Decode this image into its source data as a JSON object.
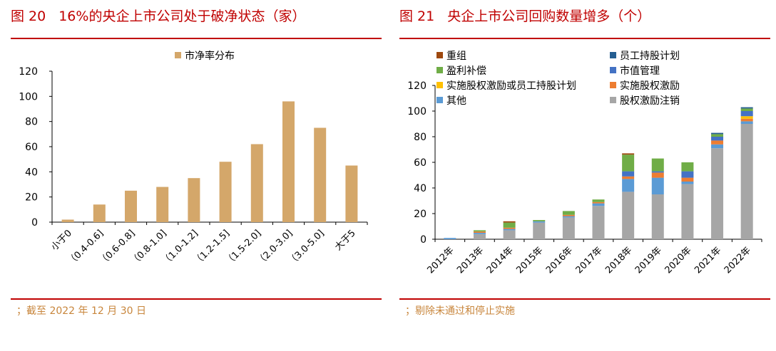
{
  "left": {
    "figure_no": "图 20",
    "title": "16%的央企上市公司处于破净状态（家）",
    "note": "；截至 2022 年 12 月 30 日"
  },
  "right": {
    "figure_no": "图 21",
    "title": "央企上市公司回购数量增多（个）",
    "note": "；剔除未通过和停止实施"
  },
  "chart_data": [
    {
      "type": "bar",
      "categories": [
        "小于0",
        "（0.4-0.6]",
        "（0.6-0.8]",
        "（0.8-1.0]",
        "（1.0-1.2]",
        "（1.2-1.5]",
        "（1.5-2.0]",
        "（2.0-3.0]",
        "（3.0-5.0]",
        "大于5"
      ],
      "values": [
        2,
        14,
        25,
        28,
        35,
        48,
        62,
        96,
        75,
        45
      ],
      "series_name": "市净率分布",
      "color": "#d4a76a",
      "ylim": [
        0,
        120
      ],
      "yticks": [
        0,
        20,
        40,
        60,
        80,
        100,
        120
      ],
      "legend": "top-center",
      "grid": false
    },
    {
      "type": "bar",
      "stacked": true,
      "categories": [
        "2012年",
        "2013年",
        "2014年",
        "2015年",
        "2016年",
        "2017年",
        "2018年",
        "2019年",
        "2020年",
        "2021年",
        "2022年"
      ],
      "ylim": [
        0,
        120
      ],
      "yticks": [
        0,
        20,
        40,
        60,
        80,
        100,
        120
      ],
      "legend": "top",
      "grid": false,
      "series": [
        {
          "name": "股权激励注销",
          "color": "#a6a6a6",
          "values": [
            0,
            4,
            7,
            13,
            17,
            26,
            37,
            35,
            43,
            71,
            90
          ]
        },
        {
          "name": "其他",
          "color": "#5b9bd5",
          "values": [
            1,
            1,
            1,
            1,
            1,
            2,
            10,
            13,
            2,
            3,
            2
          ]
        },
        {
          "name": "实施股权激励",
          "color": "#ed7d31",
          "values": [
            0,
            1,
            1,
            0,
            1,
            1,
            2,
            4,
            3,
            3,
            2
          ]
        },
        {
          "name": "实施股权激励或员工持股计划",
          "color": "#ffc000",
          "values": [
            0,
            0,
            0,
            0,
            0,
            0,
            0,
            0,
            0,
            0,
            2
          ]
        },
        {
          "name": "市值管理",
          "color": "#4472c4",
          "values": [
            0,
            0,
            0,
            0,
            0,
            0,
            4,
            1,
            5,
            3,
            4
          ]
        },
        {
          "name": "盈利补偿",
          "color": "#70ad47",
          "values": [
            0,
            1,
            4,
            1,
            3,
            2,
            13,
            10,
            7,
            2,
            2
          ]
        },
        {
          "name": "员工持股计划",
          "color": "#255e91",
          "values": [
            0,
            0,
            0,
            0,
            0,
            0,
            0,
            0,
            0,
            1,
            1
          ]
        },
        {
          "name": "重组",
          "color": "#9e480e",
          "values": [
            0,
            0,
            1,
            0,
            0,
            0,
            1,
            0,
            0,
            0,
            0
          ]
        }
      ]
    }
  ]
}
